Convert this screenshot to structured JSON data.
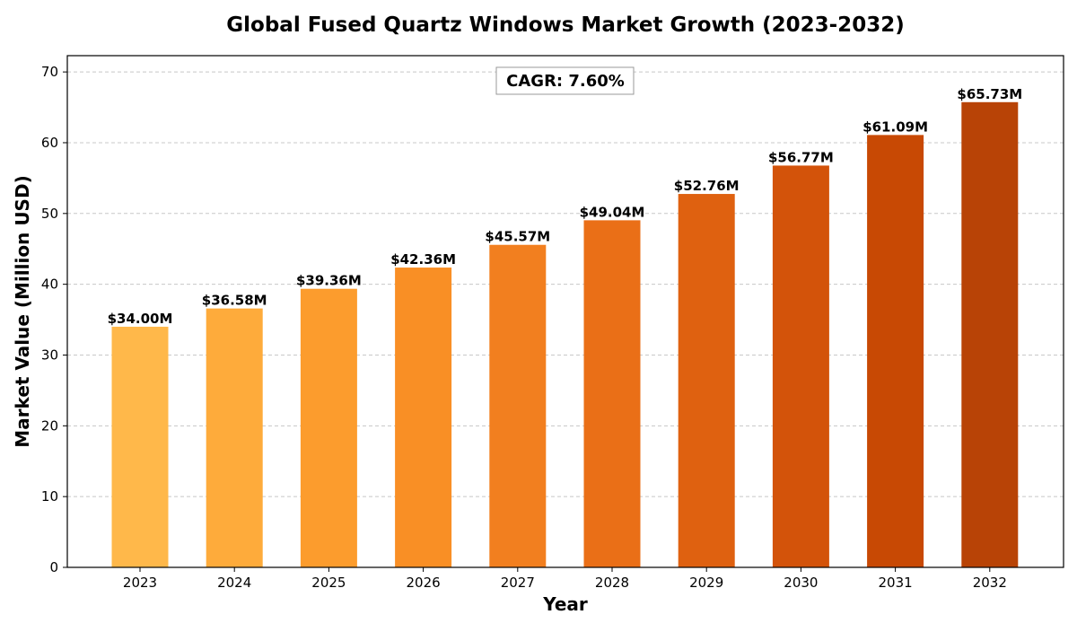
{
  "chart_data": {
    "type": "bar",
    "title": "Global Fused Quartz Windows Market Growth (2023-2032)",
    "xlabel": "Year",
    "ylabel": "Market Value (Million USD)",
    "categories": [
      "2023",
      "2024",
      "2025",
      "2026",
      "2027",
      "2028",
      "2029",
      "2030",
      "2031",
      "2032"
    ],
    "values": [
      34.0,
      36.58,
      39.36,
      42.36,
      45.57,
      49.04,
      52.76,
      56.77,
      61.09,
      65.73
    ],
    "data_labels": [
      "$34.00M",
      "$36.58M",
      "$39.36M",
      "$42.36M",
      "$45.57M",
      "$49.04M",
      "$52.76M",
      "$56.77M",
      "$61.09M",
      "$65.73M"
    ],
    "bar_colors": [
      "#FFB84A",
      "#FEAB3B",
      "#FC9C2D",
      "#F98F25",
      "#F27F1F",
      "#EA6F17",
      "#DF6110",
      "#D3530A",
      "#C84904",
      "#B84306"
    ],
    "ylim": [
      0,
      72.3
    ],
    "yticks": [
      0,
      10,
      20,
      30,
      40,
      50,
      60,
      70
    ],
    "grid": "y-dashed",
    "annotation": "CAGR: 7.60%"
  }
}
